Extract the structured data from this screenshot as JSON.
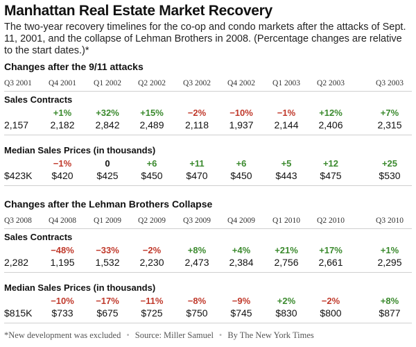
{
  "header": {
    "title": "Manhattan Real Estate Market Recovery",
    "subtitle": "The two-year recovery timelines for the co-op and condo markets after the attacks of Sept. 11, 2001, and the collapse of Lehman Brothers in 2008. (Percentage changes are relative to the start dates.)*"
  },
  "colors": {
    "positive": "#3b8a2e",
    "negative": "#c0392b",
    "neutral": "#111111"
  },
  "chart_data": {
    "type": "table",
    "sections": [
      {
        "title": "Changes after the 9/11 attacks",
        "quarters": [
          "Q3 2001",
          "Q4 2001",
          "Q1 2002",
          "Q2 2002",
          "Q3 2002",
          "Q4 2002",
          "Q1 2003",
          "Q2 2003",
          "Q3 2003"
        ],
        "metrics": [
          {
            "title": "Sales Contracts",
            "changes": [
              "",
              "+1%",
              "+32%",
              "+15%",
              "−2%",
              "−10%",
              "−1%",
              "+12%",
              "+7%"
            ],
            "change_values": [
              null,
              1,
              32,
              15,
              -2,
              -10,
              -1,
              12,
              7
            ],
            "values": [
              "2,157",
              "2,182",
              "2,842",
              "2,489",
              "2,118",
              "1,937",
              "2,144",
              "2,406",
              "2,315"
            ]
          },
          {
            "title": "Median Sales Prices (in thousands)",
            "changes": [
              "",
              "−1%",
              "0",
              "+6",
              "+11",
              "+6",
              "+5",
              "+12",
              "+25"
            ],
            "change_values": [
              null,
              -1,
              0,
              6,
              11,
              6,
              5,
              12,
              25
            ],
            "values": [
              "$423K",
              "$420",
              "$425",
              "$450",
              "$470",
              "$450",
              "$443",
              "$475",
              "$530"
            ]
          }
        ]
      },
      {
        "title": "Changes after the Lehman Brothers Collapse",
        "quarters": [
          "Q3 2008",
          "Q4 2008",
          "Q1 2009",
          "Q2 2009",
          "Q3 2009",
          "Q4 2009",
          "Q1 2010",
          "Q2 2010",
          "Q3 2010"
        ],
        "metrics": [
          {
            "title": "Sales Contracts",
            "changes": [
              "",
              "−48%",
              "−33%",
              "−2%",
              "+8%",
              "+4%",
              "+21%",
              "+17%",
              "+1%"
            ],
            "change_values": [
              null,
              -48,
              -33,
              -2,
              8,
              4,
              21,
              17,
              1
            ],
            "values": [
              "2,282",
              "1,195",
              "1,532",
              "2,230",
              "2,473",
              "2,384",
              "2,756",
              "2,661",
              "2,295"
            ]
          },
          {
            "title": "Median Sales Prices (in thousands)",
            "changes": [
              "",
              "−10%",
              "−17%",
              "−11%",
              "−8%",
              "−9%",
              "+2%",
              "−2%",
              "+8%"
            ],
            "change_values": [
              null,
              -10,
              -17,
              -11,
              -8,
              -9,
              2,
              -2,
              8
            ],
            "values": [
              "$815K",
              "$733",
              "$675",
              "$725",
              "$750",
              "$745",
              "$830",
              "$800",
              "$877"
            ]
          }
        ]
      }
    ]
  },
  "footer": {
    "note": "*New development was excluded",
    "source": "Source: Miller Samuel",
    "credit": "By The New York Times"
  }
}
